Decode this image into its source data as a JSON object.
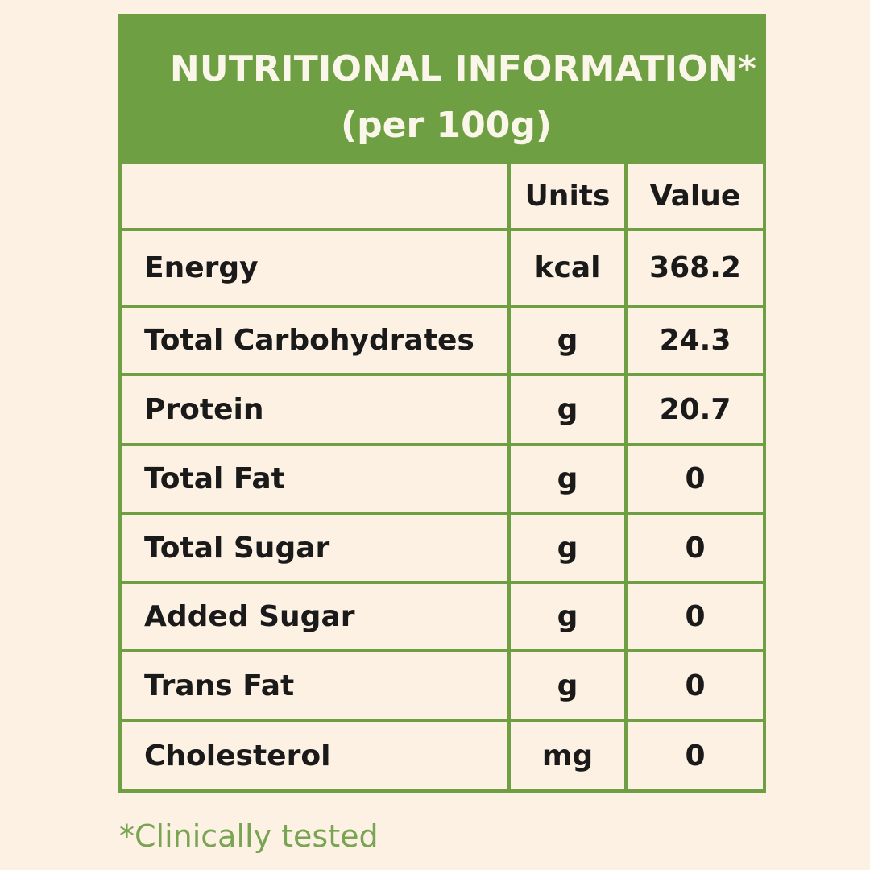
{
  "header": {
    "title": "NUTRITIONAL INFORMATION*",
    "subtitle": "(per 100g)"
  },
  "columns": {
    "units": "Units",
    "value": "Value"
  },
  "rows": [
    {
      "name": "Energy",
      "unit": "kcal",
      "value": "368.2"
    },
    {
      "name": "Total Carbohydrates",
      "unit": "g",
      "value": "24.3"
    },
    {
      "name": "Protein",
      "unit": "g",
      "value": "20.7"
    },
    {
      "name": "Total Fat",
      "unit": "g",
      "value": "0"
    },
    {
      "name": "Total Sugar",
      "unit": "g",
      "value": "0"
    },
    {
      "name": "Added Sugar",
      "unit": "g",
      "value": "0"
    },
    {
      "name": "Trans Fat",
      "unit": "g",
      "value": "0"
    },
    {
      "name": "Cholesterol",
      "unit": "mg",
      "value": "0"
    }
  ],
  "footnote": "*Clinically tested",
  "colors": {
    "accent": "#6f9f43",
    "background": "#fdf1e3",
    "footnote": "#79a451"
  }
}
